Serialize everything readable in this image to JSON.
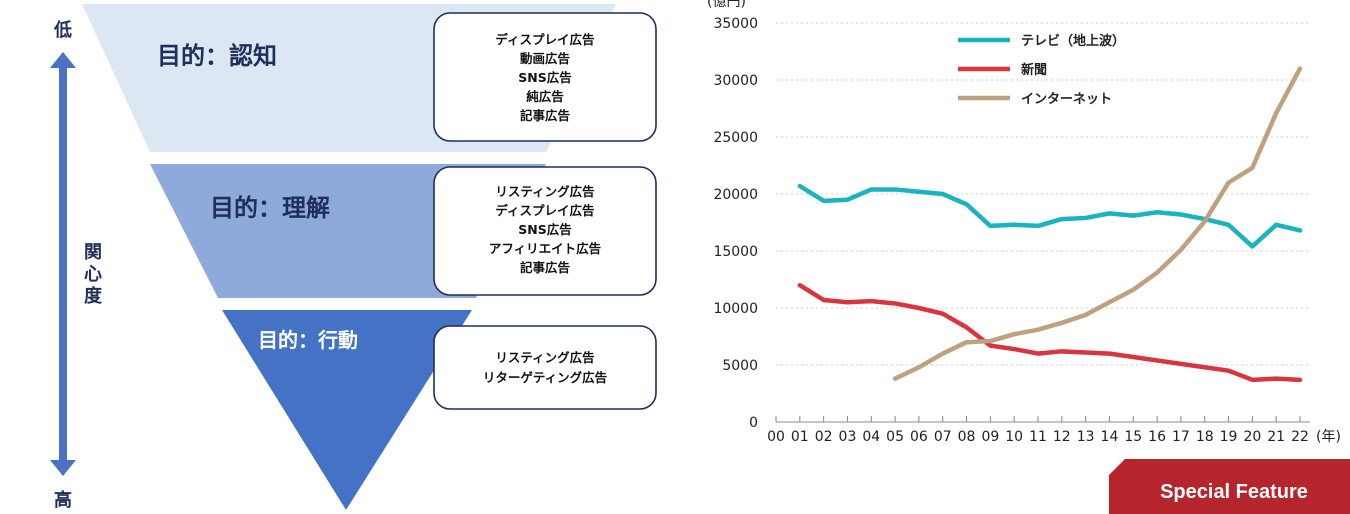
{
  "funnel": {
    "scale_low": "低",
    "scale_label_chars": [
      "関",
      "心",
      "度"
    ],
    "scale_high": "高",
    "stages": [
      {
        "title": "目的：認知",
        "color": "#dde7f4",
        "ads": [
          "ディスプレイ広告",
          "動画広告",
          "SNS広告",
          "純広告",
          "記事広告"
        ]
      },
      {
        "title": "目的：理解",
        "color": "#8eaadb",
        "ads": [
          "リスティング広告",
          "ディスプレイ広告",
          "SNS広告",
          "アフィリエイト広告",
          "記事広告"
        ]
      },
      {
        "title": "目的：行動",
        "color": "#4472c4",
        "ads": [
          "リスティング広告",
          "リターゲティング広告"
        ]
      }
    ],
    "title_color": "#1f2e5a",
    "arrow_color": "#4a72c0"
  },
  "chart_data": {
    "type": "line",
    "unit_label": "(億円)",
    "x_unit_label": "(年)",
    "categories": [
      "00",
      "01",
      "02",
      "03",
      "04",
      "05",
      "06",
      "07",
      "08",
      "09",
      "10",
      "11",
      "12",
      "13",
      "14",
      "15",
      "16",
      "17",
      "18",
      "19",
      "20",
      "21",
      "22"
    ],
    "ylim": [
      0,
      35000
    ],
    "yticks": [
      0,
      5000,
      10000,
      15000,
      20000,
      25000,
      30000,
      35000
    ],
    "grid": true,
    "legend_position": "top-left",
    "series": [
      {
        "name": "テレビ（地上波）",
        "color": "#1ab3be",
        "values": [
          null,
          20700,
          19400,
          19500,
          20400,
          20400,
          20200,
          20000,
          19100,
          17200,
          17300,
          17200,
          17800,
          17900,
          18300,
          18100,
          18400,
          18200,
          17800,
          17300,
          15400,
          17300,
          16800
        ]
      },
      {
        "name": "新聞",
        "color": "#d9353f",
        "values": [
          null,
          12000,
          10700,
          10500,
          10600,
          10400,
          10000,
          9500,
          8300,
          6700,
          6400,
          6000,
          6200,
          6100,
          6000,
          5700,
          5400,
          5100,
          4800,
          4500,
          3700,
          3800,
          3700
        ]
      },
      {
        "name": "インターネット",
        "color": "#bfa17f",
        "values": [
          null,
          null,
          null,
          null,
          null,
          3800,
          4800,
          6000,
          7000,
          7100,
          7700,
          8100,
          8700,
          9400,
          10500,
          11600,
          13100,
          15100,
          17600,
          21000,
          22300,
          27100,
          31000
        ]
      }
    ]
  },
  "badge": {
    "label": "Special Feature",
    "color": "#b5252b"
  }
}
